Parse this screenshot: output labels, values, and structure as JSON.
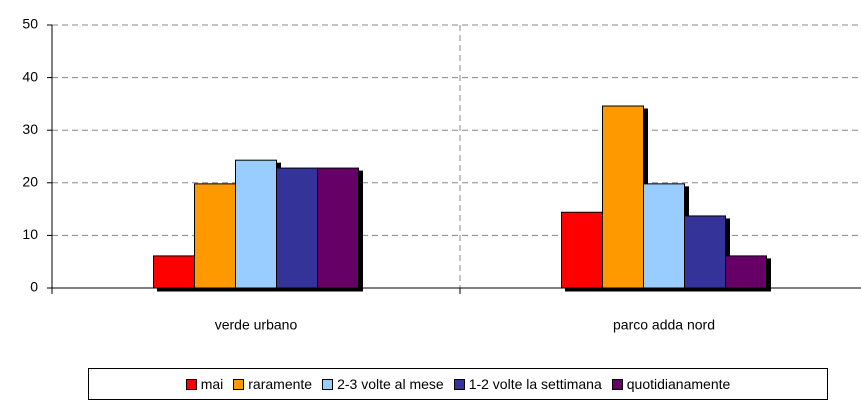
{
  "chart_data": {
    "type": "bar",
    "categories": [
      "verde urbano",
      "parco adda nord"
    ],
    "series": [
      {
        "name": "mai",
        "color": "#ff0000",
        "values": [
          6.1,
          14.4
        ]
      },
      {
        "name": "raramente",
        "color": "#ff9900",
        "values": [
          19.8,
          34.6
        ]
      },
      {
        "name": "2-3 volte al mese",
        "color": "#99ccff",
        "values": [
          24.3,
          19.8
        ]
      },
      {
        "name": "1-2 volte la settimana",
        "color": "#333399",
        "values": [
          22.8,
          13.7
        ]
      },
      {
        "name": "quotidianamente",
        "color": "#660066",
        "values": [
          22.8,
          6.1
        ]
      }
    ],
    "ylim": [
      0,
      50
    ],
    "yticks": [
      0,
      10,
      20,
      30,
      40,
      50
    ],
    "grid": true,
    "legend": "bottom"
  }
}
